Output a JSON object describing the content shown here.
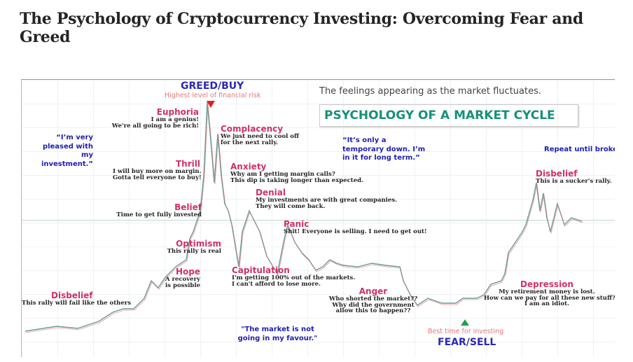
{
  "article": {
    "title": "The Psychology of Cryptocurrency Investing: Overcoming Fear and Greed"
  },
  "figure": {
    "greed": "GREED/BUY",
    "greed_sub": "Highest level of financial risk",
    "feelings": "The feelings appearing as the market fluctuates.",
    "title": "PSYCHOLOGY OF A MARKET CYCLE",
    "fear": "FEAR/SELL",
    "fear_sub": "Best time for investing",
    "quotes": [
      "“I’m very pleased with my investment.”",
      "“It’s only a temporary down. I’m in it for long term.”",
      "\"The market is not going in my favour.\"",
      "Repeat until broke."
    ],
    "stages": [
      {
        "name": "Euphoria",
        "note": "I am a genius!\nWe're all going to be rich!"
      },
      {
        "name": "Complacency",
        "note": "We just need to cool off\nfor the next rally."
      },
      {
        "name": "Thrill",
        "note": "I will buy more on margin.\nGotta tell everyone to buy!"
      },
      {
        "name": "Anxiety",
        "note": "Why am I getting margin calls?\nThis dip is taking longer than expected."
      },
      {
        "name": "Denial",
        "note": "My investments are with great companies.\nThey will come back."
      },
      {
        "name": "Belief",
        "note": "Time to get fully invested"
      },
      {
        "name": "Panic",
        "note": "Shit! Everyone is selling. I need to get out!"
      },
      {
        "name": "Optimism",
        "note": "This rally is real"
      },
      {
        "name": "Hope",
        "note": "A recovery\nis possible"
      },
      {
        "name": "Capitulation",
        "note": "I'm getting 100% out of the markets.\nI can't afford to lose more."
      },
      {
        "name": "Disbelief",
        "note": "This rally will fail like the others"
      },
      {
        "name": "Anger",
        "note": "Who shorted the market??\nWhy did the government\nallow this to happen??"
      },
      {
        "name": "Depression",
        "note": "My retirement money is lost.\nHow can we pay for all these new stuff?\nI am an idiot."
      },
      {
        "name": "Disbelief",
        "note": "This is a sucker's rally."
      }
    ]
  }
}
